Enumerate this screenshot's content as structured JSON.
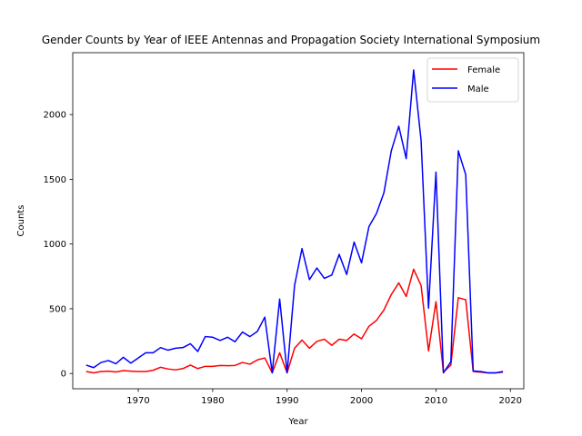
{
  "chart_data": {
    "type": "line",
    "title": "Gender Counts by Year of IEEE Antennas and Propagation Society International Symposium",
    "xlabel": "Year",
    "ylabel": "Counts",
    "xlim": [
      1961.2,
      2021.8
    ],
    "ylim": [
      -118.0,
      2478.0
    ],
    "x_ticks": [
      1970,
      1980,
      1990,
      2000,
      2010,
      2020
    ],
    "y_ticks": [
      0,
      500,
      1000,
      1500,
      2000
    ],
    "grid": false,
    "legend_position": "top-right",
    "x": [
      1963,
      1964,
      1965,
      1966,
      1967,
      1968,
      1969,
      1970,
      1971,
      1972,
      1973,
      1974,
      1975,
      1976,
      1977,
      1978,
      1979,
      1980,
      1981,
      1982,
      1983,
      1984,
      1985,
      1986,
      1987,
      1988,
      1989,
      1990,
      1991,
      1992,
      1993,
      1994,
      1995,
      1996,
      1997,
      1998,
      1999,
      2000,
      2001,
      2002,
      2003,
      2004,
      2005,
      2006,
      2007,
      2008,
      2009,
      2010,
      2011,
      2012,
      2013,
      2014,
      2015,
      2016,
      2017,
      2018,
      2019
    ],
    "series": [
      {
        "name": "Female",
        "color": "#ff0000",
        "values": [
          15,
          5,
          15,
          18,
          12,
          22,
          18,
          15,
          15,
          25,
          48,
          35,
          28,
          38,
          65,
          38,
          55,
          55,
          62,
          60,
          62,
          85,
          72,
          105,
          120,
          5,
          160,
          5,
          195,
          258,
          195,
          248,
          265,
          218,
          265,
          255,
          305,
          268,
          365,
          410,
          490,
          610,
          700,
          595,
          805,
          680,
          175,
          555,
          10,
          65,
          585,
          570,
          15,
          10,
          5,
          5,
          10
        ]
      },
      {
        "name": "Male",
        "color": "#0000ff",
        "values": [
          65,
          45,
          85,
          100,
          75,
          125,
          80,
          120,
          160,
          160,
          200,
          180,
          195,
          200,
          230,
          170,
          285,
          280,
          255,
          280,
          245,
          320,
          285,
          325,
          435,
          5,
          575,
          5,
          680,
          965,
          725,
          815,
          735,
          760,
          920,
          765,
          1015,
          855,
          1135,
          1235,
          1395,
          1720,
          1910,
          1660,
          2345,
          1800,
          505,
          1555,
          5,
          90,
          1720,
          1535,
          20,
          15,
          5,
          5,
          15
        ]
      }
    ]
  }
}
